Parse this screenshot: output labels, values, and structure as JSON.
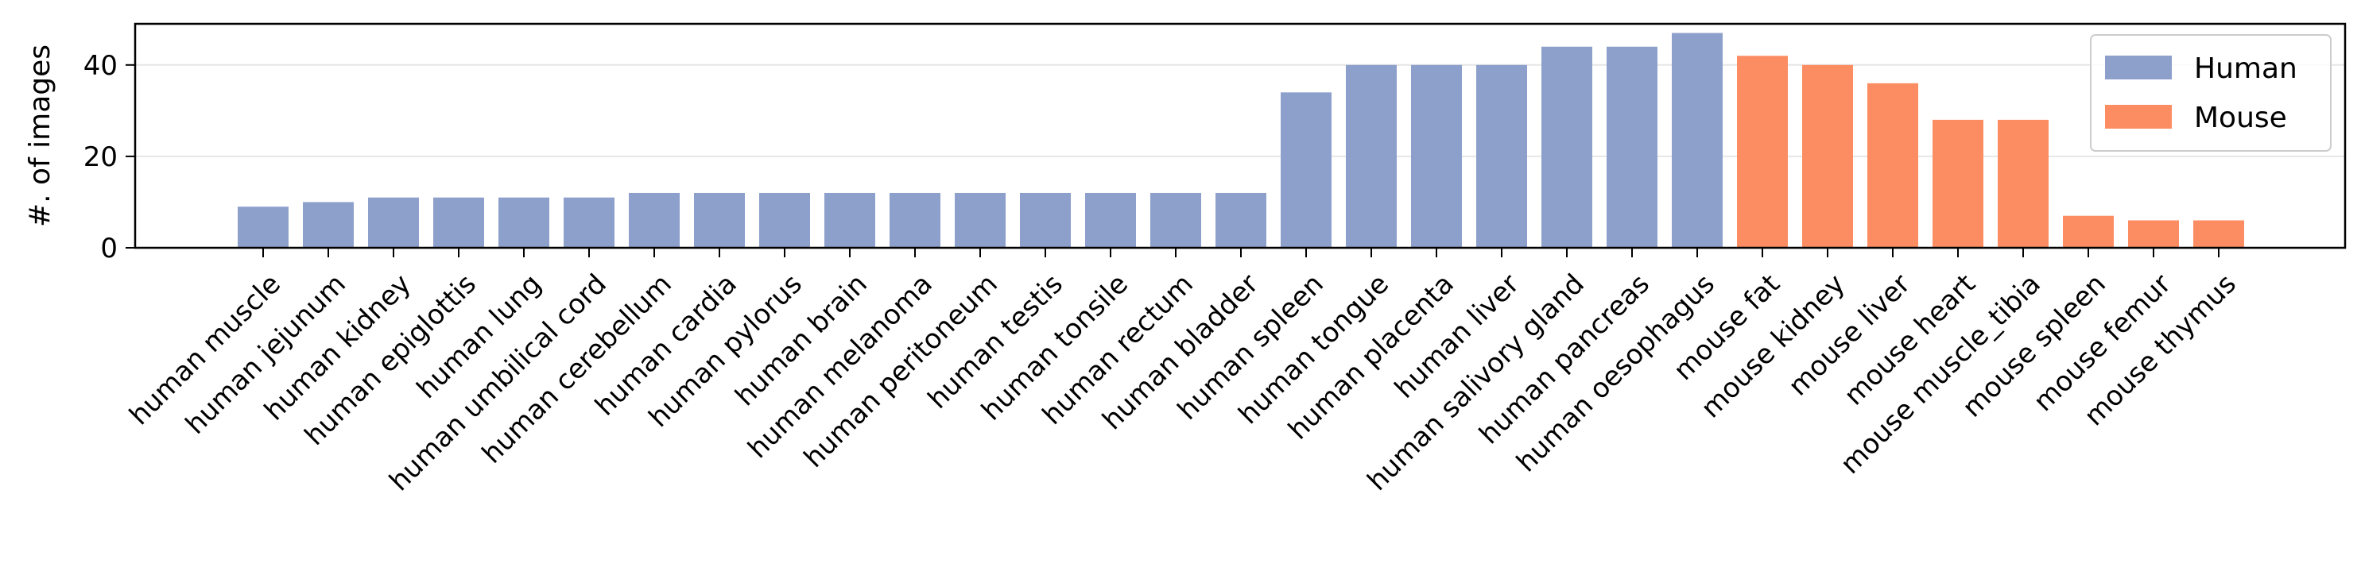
{
  "chart_data": {
    "type": "bar",
    "title": "",
    "xlabel": "",
    "ylabel": "#. of images",
    "ylim": [
      0,
      49
    ],
    "yticks": [
      0,
      20,
      40
    ],
    "grid": "horizontal",
    "legend_position": "top-right",
    "categories": [
      "human muscle",
      "human jejunum",
      "human kidney",
      "human epiglottis",
      "human lung",
      "human umbilical cord",
      "human cerebellum",
      "human cardia",
      "human pylorus",
      "human brain",
      "human melanoma",
      "human peritoneum",
      "human testis",
      "human tonsile",
      "human rectum",
      "human bladder",
      "human spleen",
      "human tongue",
      "human placenta",
      "human liver",
      "human salivory gland",
      "human pancreas",
      "human oesophagus",
      "mouse fat",
      "mouse kidney",
      "mouse liver",
      "mouse heart",
      "mouse muscle_tibia",
      "mouse spleen",
      "mouse femur",
      "mouse thymus"
    ],
    "values": [
      9,
      10,
      11,
      11,
      11,
      11,
      12,
      12,
      12,
      12,
      12,
      12,
      12,
      12,
      12,
      12,
      34,
      40,
      40,
      40,
      44,
      44,
      47,
      42,
      40,
      36,
      28,
      28,
      7,
      6,
      6
    ],
    "groups": [
      "Human",
      "Human",
      "Human",
      "Human",
      "Human",
      "Human",
      "Human",
      "Human",
      "Human",
      "Human",
      "Human",
      "Human",
      "Human",
      "Human",
      "Human",
      "Human",
      "Human",
      "Human",
      "Human",
      "Human",
      "Human",
      "Human",
      "Human",
      "Mouse",
      "Mouse",
      "Mouse",
      "Mouse",
      "Mouse",
      "Mouse",
      "Mouse",
      "Mouse"
    ],
    "legend": [
      {
        "name": "Human",
        "color": "#8da0cb"
      },
      {
        "name": "Mouse",
        "color": "#fc8d62"
      }
    ]
  }
}
